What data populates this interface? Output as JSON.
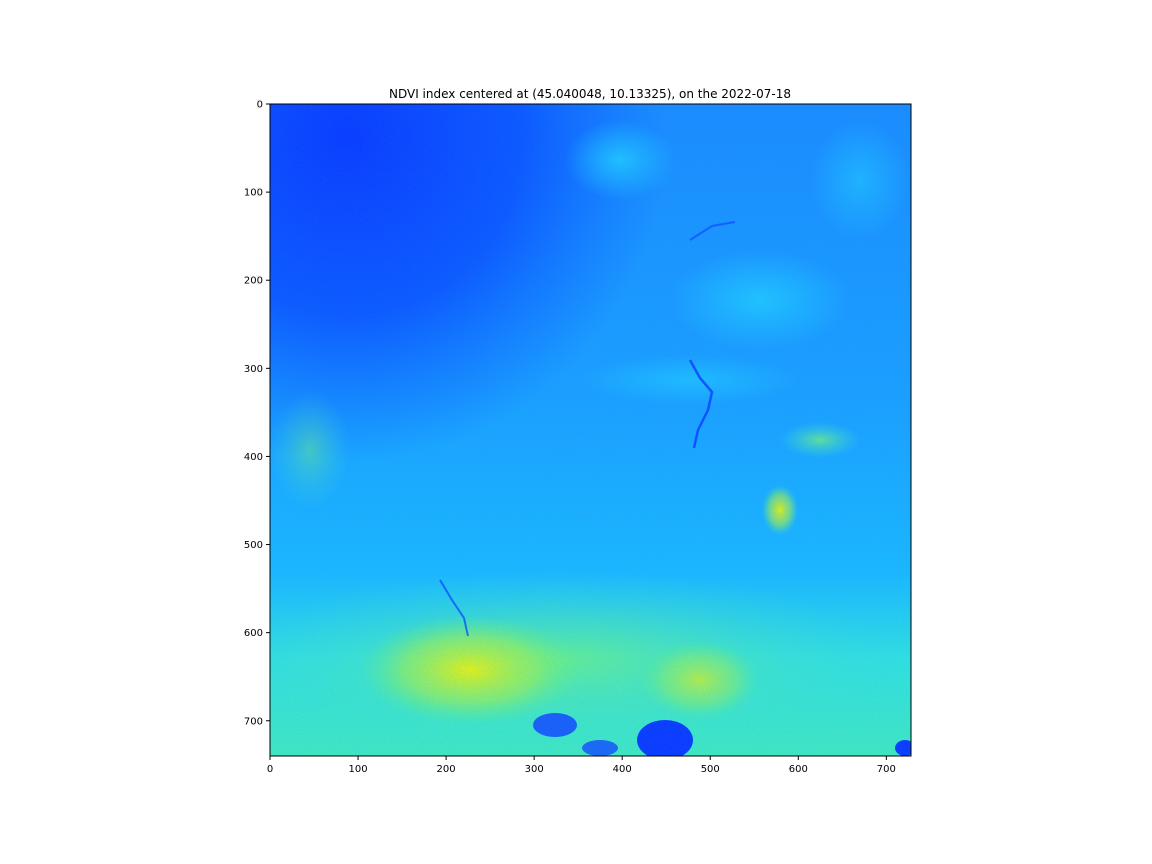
{
  "chart_data": {
    "type": "heatmap",
    "title": "NDVI index centered at (45.040048, 10.13325), on the 2022-07-18",
    "xlabel": "",
    "ylabel": "",
    "xlim": [
      0,
      728
    ],
    "ylim": [
      740,
      0
    ],
    "x_ticks": [
      0,
      100,
      200,
      300,
      400,
      500,
      600,
      700
    ],
    "y_ticks": [
      0,
      100,
      200,
      300,
      400,
      500,
      600,
      700
    ],
    "colormap": "jet",
    "colors": {
      "dark_blue": "#0a3cff",
      "blue": "#1a7cff",
      "light_blue": "#18b4ff",
      "cyan": "#20e0f0",
      "green": "#60f080",
      "yellow": "#e8f010"
    },
    "grid": false,
    "legend": "none"
  }
}
